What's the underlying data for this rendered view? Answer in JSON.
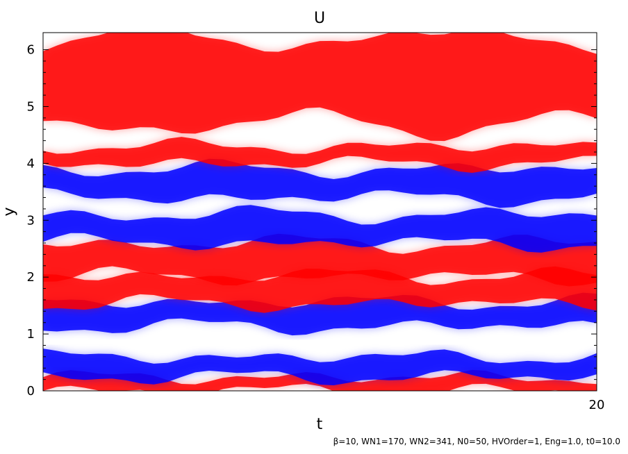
{
  "chart_data": {
    "type": "heatmap",
    "title": "U",
    "xlabel": "t",
    "ylabel": "y",
    "xlim": [
      0,
      20
    ],
    "ylim": [
      0,
      6.3
    ],
    "x_tick_labels": [
      "20"
    ],
    "y_tick_labels": [
      "0",
      "1",
      "2",
      "3",
      "4",
      "5",
      "6"
    ],
    "footer": "β=10, WN1=170, WN2=341, N0=50, HVOrder=1, Eng=1.0, t0=10.0",
    "colors": {
      "positive": "#ff0000",
      "negative": "#0000ff",
      "background": "#ffffff"
    },
    "bands": [
      {
        "sign": "positive",
        "y_center": 0.12,
        "half_width": 0.12
      },
      {
        "sign": "negative",
        "y_center": 0.42,
        "half_width": 0.18
      },
      {
        "sign": "negative",
        "y_center": 1.35,
        "half_width": 0.22
      },
      {
        "sign": "positive",
        "y_center": 1.78,
        "half_width": 0.25
      },
      {
        "sign": "positive",
        "y_center": 2.3,
        "half_width": 0.3
      },
      {
        "sign": "negative",
        "y_center": 2.85,
        "half_width": 0.25
      },
      {
        "sign": "negative",
        "y_center": 3.65,
        "half_width": 0.25
      },
      {
        "sign": "positive",
        "y_center": 4.15,
        "half_width": 0.15
      },
      {
        "sign": "positive",
        "y_center": 5.45,
        "half_width": 0.75
      }
    ]
  }
}
